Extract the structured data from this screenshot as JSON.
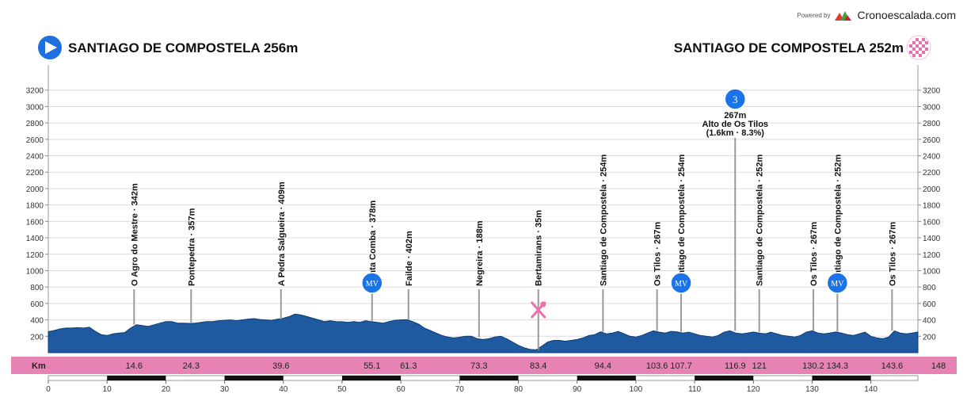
{
  "header": {
    "powered_by": "Powered by",
    "brand": "Cronoescalada.com",
    "start_label": "SANTIAGO DE COMPOSTELA 256m",
    "finish_label": "SANTIAGO DE COMPOSTELA 252m"
  },
  "colors": {
    "profile_fill": "#1f5aa0",
    "km_band": "#e683b4",
    "mv_badge": "#1a73e8",
    "feed_icon": "#ef6fa8",
    "finish_flag": "#e86fb0",
    "start_icon": "#1f6fde",
    "logo_red": "#e53935",
    "logo_green": "#43a047"
  },
  "chart_data": {
    "type": "area",
    "title": "",
    "xlabel": "",
    "ylabel": "",
    "xlim": [
      0,
      148
    ],
    "ylim": [
      0,
      3400
    ],
    "y_ticks": [
      200,
      400,
      600,
      800,
      1000,
      1200,
      1400,
      1600,
      1800,
      2000,
      2200,
      2400,
      2600,
      2800,
      3000,
      3200
    ],
    "x_ticks": [
      0,
      10,
      20,
      30,
      40,
      50,
      60,
      70,
      80,
      90,
      100,
      110,
      120,
      130,
      140
    ],
    "km_band_label": "Km",
    "grid": true,
    "profile": {
      "x": [
        0,
        1,
        2,
        3,
        4,
        5,
        6,
        7,
        8,
        9,
        10,
        11,
        12,
        13,
        14,
        15,
        16,
        17,
        18,
        19,
        20,
        21,
        22,
        23,
        24,
        25,
        26,
        27,
        28,
        29,
        30,
        31,
        32,
        33,
        34,
        35,
        36,
        37,
        38,
        39,
        40,
        41,
        42,
        43,
        44,
        45,
        46,
        47,
        48,
        49,
        50,
        51,
        52,
        53,
        54,
        55,
        56,
        57,
        58,
        59,
        60,
        61,
        62,
        63,
        64,
        65,
        66,
        67,
        68,
        69,
        70,
        71,
        72,
        73,
        74,
        75,
        76,
        77,
        78,
        79,
        80,
        81,
        82,
        83,
        84,
        85,
        86,
        87,
        88,
        89,
        90,
        91,
        92,
        93,
        94,
        95,
        96,
        97,
        98,
        99,
        100,
        101,
        102,
        103,
        104,
        105,
        106,
        107,
        108,
        109,
        110,
        111,
        112,
        113,
        114,
        115,
        116,
        117,
        118,
        119,
        120,
        121,
        122,
        123,
        124,
        125,
        126,
        127,
        128,
        129,
        130,
        131,
        132,
        133,
        134,
        135,
        136,
        137,
        138,
        139,
        140,
        141,
        142,
        143,
        144,
        145,
        146,
        147,
        148
      ],
      "y": [
        256,
        270,
        290,
        300,
        300,
        305,
        300,
        310,
        260,
        220,
        210,
        230,
        240,
        245,
        300,
        340,
        330,
        320,
        340,
        360,
        380,
        380,
        360,
        360,
        357,
        360,
        370,
        380,
        380,
        390,
        395,
        400,
        390,
        400,
        410,
        415,
        405,
        400,
        395,
        409,
        420,
        440,
        470,
        460,
        440,
        420,
        400,
        380,
        390,
        380,
        378,
        370,
        380,
        370,
        390,
        378,
        370,
        360,
        380,
        395,
        400,
        402,
        380,
        350,
        300,
        270,
        240,
        210,
        190,
        180,
        188,
        200,
        200,
        170,
        160,
        170,
        190,
        200,
        170,
        130,
        90,
        60,
        40,
        35,
        80,
        130,
        150,
        150,
        140,
        150,
        160,
        180,
        210,
        220,
        254,
        230,
        240,
        260,
        230,
        200,
        190,
        210,
        240,
        267,
        250,
        240,
        260,
        254,
        240,
        250,
        230,
        210,
        200,
        190,
        210,
        250,
        267,
        240,
        230,
        240,
        252,
        240,
        230,
        250,
        230,
        210,
        200,
        190,
        210,
        250,
        267,
        240,
        230,
        240,
        252,
        240,
        220,
        210,
        230,
        250,
        200,
        180,
        170,
        190,
        267,
        240,
        230,
        240,
        252
      ]
    },
    "points": [
      {
        "km": 14.6,
        "label": "O Agro do Mestre · 342m",
        "elev": 342
      },
      {
        "km": 24.3,
        "label": "Pontepedra · 357m",
        "elev": 357
      },
      {
        "km": 39.6,
        "label": "A Pedra Salgueira · 409m",
        "elev": 409
      },
      {
        "km": 55.1,
        "label": "Santa Comba · 378m",
        "elev": 378,
        "badge": "MV"
      },
      {
        "km": 61.3,
        "label": "Failde · 402m",
        "elev": 402
      },
      {
        "km": 73.3,
        "label": "Negreira · 188m",
        "elev": 188
      },
      {
        "km": 83.4,
        "label": "Bertamirans · 35m",
        "elev": 35,
        "feed": true
      },
      {
        "km": 94.4,
        "label": "Santiago de Compostela · 254m",
        "elev": 254
      },
      {
        "km": 103.6,
        "label": "Os Tilos · 267m",
        "elev": 267
      },
      {
        "km": 107.7,
        "label": "Santiago de Compostela · 254m",
        "elev": 254,
        "badge": "MV"
      },
      {
        "km": 121,
        "label": "Santiago de Compostela · 252m",
        "elev": 252
      },
      {
        "km": 130.2,
        "label": "Os Tilos · 267m",
        "elev": 267
      },
      {
        "km": 134.3,
        "label": "Santiago de Compostela · 252m",
        "elev": 252,
        "badge": "MV"
      },
      {
        "km": 143.6,
        "label": "Os Tilos · 267m",
        "elev": 267
      }
    ],
    "climb": {
      "km": 116.9,
      "category": "3",
      "elev_label": "267m",
      "name": "Alto de Os Tilos",
      "detail": "(1.6km · 8.3%)"
    },
    "km_band_values": [
      "14.6",
      "24.3",
      "39.6",
      "55.1",
      "61.3",
      "73.3",
      "83.4",
      "94.4",
      "103.6",
      "107.7",
      "116.9",
      "121",
      "130.2",
      "134.3",
      "143.6",
      "148"
    ]
  }
}
